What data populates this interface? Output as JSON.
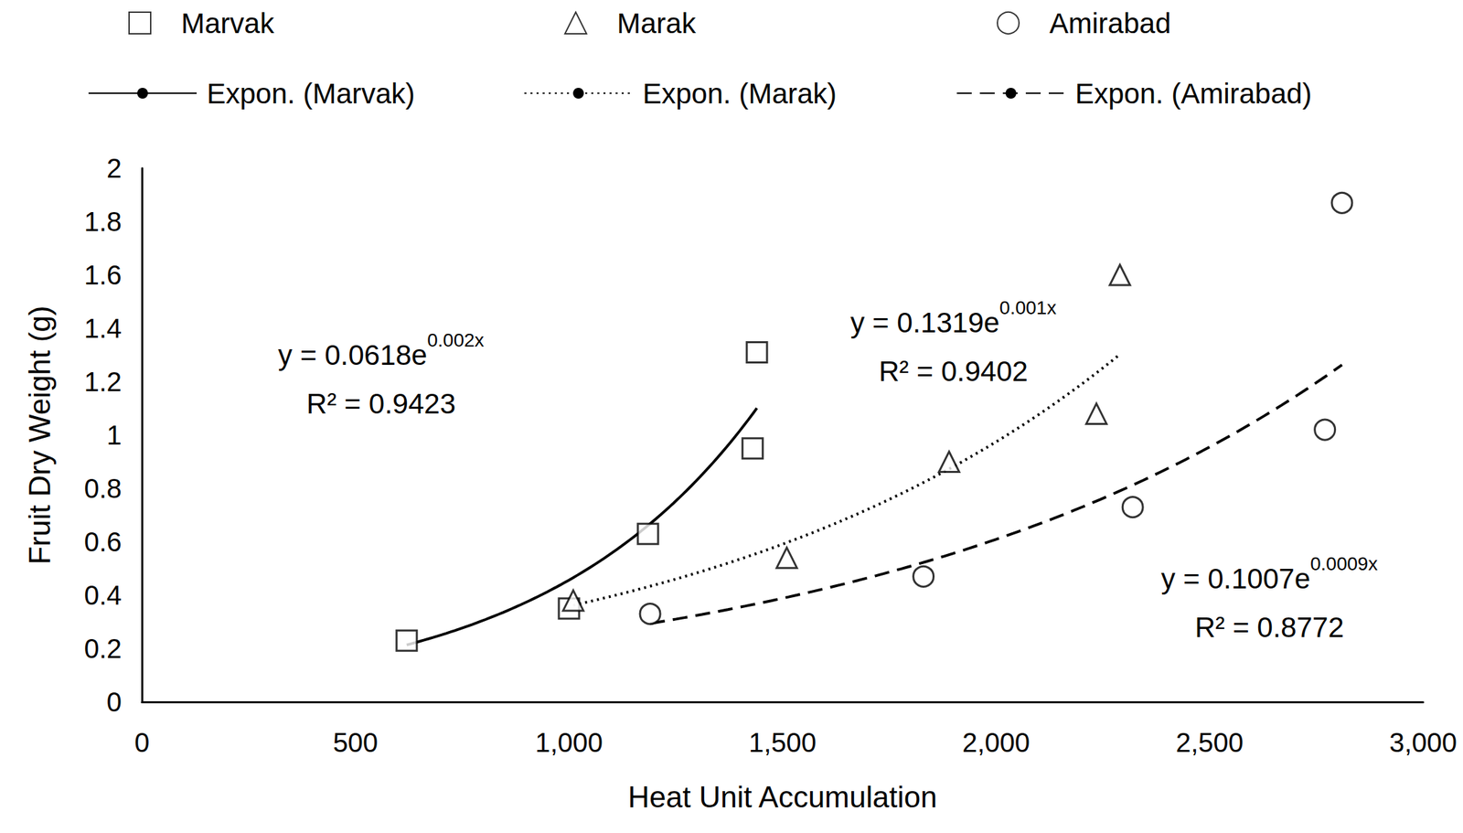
{
  "chart_data": {
    "type": "scatter",
    "x_label": "Heat Unit Accumulation",
    "y_label": "Fruit Dry Weight (g)",
    "xlim": [
      0,
      3000
    ],
    "xticks": [
      0,
      500,
      1000,
      1500,
      2000,
      2500,
      3000
    ],
    "ylim": [
      0,
      2
    ],
    "yticks": [
      0,
      0.2,
      0.4,
      0.6,
      0.8,
      1,
      1.2,
      1.4,
      1.6,
      1.8,
      2
    ],
    "grid": false,
    "series": [
      {
        "name": "Marvak",
        "marker": "square",
        "color": "#000000",
        "x": [
          620,
          1000,
          1185,
          1430,
          1440
        ],
        "values": [
          0.23,
          0.35,
          0.63,
          0.95,
          1.31
        ],
        "trendline": {
          "name": "Expon. (Marvak)",
          "line_style": "solid",
          "color": "#000000",
          "a": 0.0618,
          "b": 0.002,
          "equation": "y = 0.0618e0.002x",
          "equation_superscript": "0.002x",
          "r_squared_label": "R² = 0.9423"
        }
      },
      {
        "name": "Marak",
        "marker": "triangle",
        "color": "#000000",
        "x": [
          1010,
          1510,
          1890,
          2235,
          2290
        ],
        "values": [
          0.38,
          0.54,
          0.9,
          1.08,
          1.6
        ],
        "trendline": {
          "name": "Expon. (Marak)",
          "line_style": "dotted",
          "color": "#000000",
          "a": 0.1319,
          "b": 0.001,
          "equation": "y = 0.1319e0.001x",
          "equation_superscript": "0.001x",
          "r_squared_label": "R² = 0.9402"
        }
      },
      {
        "name": "Amirabad",
        "marker": "circle",
        "color": "#000000",
        "x": [
          1190,
          1830,
          2320,
          2770,
          2810
        ],
        "values": [
          0.33,
          0.47,
          0.73,
          1.02,
          1.87
        ],
        "trendline": {
          "name": "Expon. (Amirabad)",
          "line_style": "dashed",
          "color": "#000000",
          "a": 0.1007,
          "b": 0.0009,
          "equation": "y = 0.1007e0.0009x",
          "equation_superscript": "0.0009x",
          "r_squared_label": "R² = 0.8772"
        }
      }
    ]
  }
}
